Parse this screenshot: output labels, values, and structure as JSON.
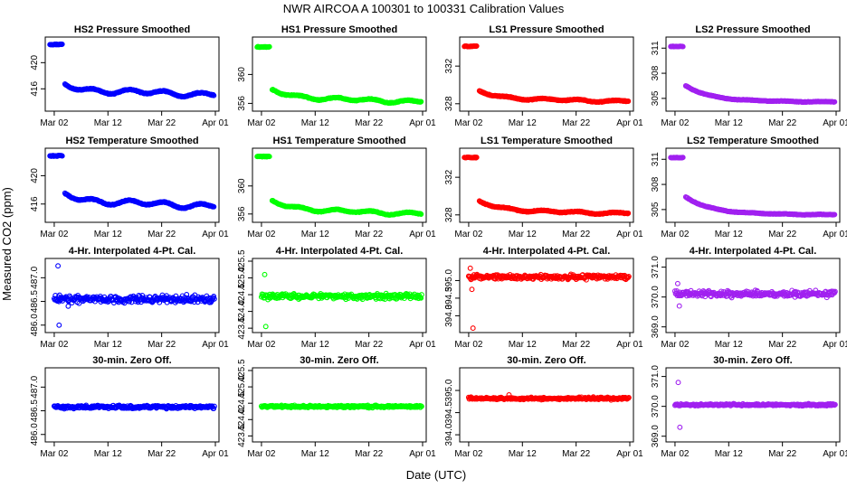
{
  "figure": {
    "title": "NWR   AIRCOA A   100301 to 100331   Calibration Values",
    "xlabel": "Date (UTC)",
    "ylabel": "Measured CO2 (ppm)"
  },
  "chart_data": [
    {
      "type": "scatter",
      "title": "HS2 Pressure Smoothed",
      "color": "#0000ff",
      "marker": "circle",
      "x_ticks": [
        "Mar 02",
        "Mar 12",
        "Mar 22",
        "Apr 01"
      ],
      "x_tick_days": [
        1,
        11,
        21,
        31
      ],
      "xlim": [
        0,
        31
      ],
      "ylim": [
        413,
        423.5
      ],
      "y_ticks": [
        416,
        420
      ],
      "y_tick_labels": [
        "416",
        "420"
      ],
      "pattern": "smoothed",
      "start": [
        0.2,
        2.5,
        422.8
      ],
      "base": 416.5,
      "end": 415.2,
      "decay": 8,
      "wiggle": 0.5,
      "noise": 0.12
    },
    {
      "type": "scatter",
      "title": "HS1 Pressure Smoothed",
      "color": "#00ff00",
      "marker": "circle",
      "x_ticks": [
        "Mar 02",
        "Mar 12",
        "Mar 22",
        "Apr 01"
      ],
      "x_tick_days": [
        1,
        11,
        21,
        31
      ],
      "xlim": [
        0,
        31
      ],
      "ylim": [
        355.3,
        364.8
      ],
      "y_ticks": [
        356,
        360
      ],
      "y_tick_labels": [
        "356",
        "360"
      ],
      "pattern": "smoothed",
      "start": [
        0.2,
        2.5,
        363.8
      ],
      "base": 357.8,
      "end": 356.3,
      "decay": 7,
      "wiggle": 0.3,
      "noise": 0.1
    },
    {
      "type": "scatter",
      "title": "LS1 Pressure Smoothed",
      "color": "#ff0000",
      "marker": "circle",
      "x_ticks": [
        "Mar 02",
        "Mar 12",
        "Mar 22",
        "Apr 01"
      ],
      "x_tick_days": [
        1,
        11,
        21,
        31
      ],
      "xlim": [
        0,
        31
      ],
      "ylim": [
        327.5,
        334.8
      ],
      "y_ticks": [
        328,
        332
      ],
      "y_tick_labels": [
        "328",
        "332"
      ],
      "pattern": "smoothed",
      "start": [
        0.2,
        2.5,
        334.1
      ],
      "base": 329.3,
      "end": 328.3,
      "decay": 6,
      "wiggle": 0.15,
      "noise": 0.08
    },
    {
      "type": "scatter",
      "title": "LS2 Pressure Smoothed",
      "color": "#a020f0",
      "marker": "circle",
      "x_ticks": [
        "Mar 02",
        "Mar 12",
        "Mar 22",
        "Apr 01"
      ],
      "x_tick_days": [
        1,
        11,
        21,
        31
      ],
      "xlim": [
        0,
        31
      ],
      "ylim": [
        303.8,
        312
      ],
      "y_ticks": [
        305,
        308,
        311
      ],
      "y_tick_labels": [
        "305",
        "308",
        "311"
      ],
      "pattern": "smoothed",
      "start": [
        0.2,
        2.5,
        311.2
      ],
      "base": 306.5,
      "end": 304.6,
      "decay": 5,
      "wiggle": 0.05,
      "noise": 0.06
    },
    {
      "type": "scatter",
      "title": "HS2 Temperature Smoothed",
      "color": "#0000ff",
      "marker": "circle",
      "x_ticks": [
        "Mar 02",
        "Mar 12",
        "Mar 22",
        "Apr 01"
      ],
      "x_tick_days": [
        1,
        11,
        21,
        31
      ],
      "xlim": [
        0,
        31
      ],
      "ylim": [
        413.8,
        423.5
      ],
      "y_ticks": [
        416,
        420
      ],
      "y_tick_labels": [
        "416",
        "420"
      ],
      "pattern": "smoothed",
      "start": [
        0.2,
        2.5,
        422.8
      ],
      "base": 417.3,
      "end": 415.8,
      "decay": 8,
      "wiggle": 0.5,
      "noise": 0.12
    },
    {
      "type": "scatter",
      "title": "HS1 Temperature Smoothed",
      "color": "#00ff00",
      "marker": "circle",
      "x_ticks": [
        "Mar 02",
        "Mar 12",
        "Mar 22",
        "Apr 01"
      ],
      "x_tick_days": [
        1,
        11,
        21,
        31
      ],
      "xlim": [
        0,
        31
      ],
      "ylim": [
        355.2,
        365
      ],
      "y_ticks": [
        356,
        360
      ],
      "y_tick_labels": [
        "356",
        "360"
      ],
      "pattern": "smoothed",
      "start": [
        0.2,
        2.5,
        364.2
      ],
      "base": 357.8,
      "end": 356.1,
      "decay": 7,
      "wiggle": 0.3,
      "noise": 0.1
    },
    {
      "type": "scatter",
      "title": "LS1 Temperature Smoothed",
      "color": "#ff0000",
      "marker": "circle",
      "x_ticks": [
        "Mar 02",
        "Mar 12",
        "Mar 22",
        "Apr 01"
      ],
      "x_tick_days": [
        1,
        11,
        21,
        31
      ],
      "xlim": [
        0,
        31
      ],
      "ylim": [
        327.5,
        334.8
      ],
      "y_ticks": [
        328,
        332
      ],
      "y_tick_labels": [
        "328",
        "332"
      ],
      "pattern": "smoothed",
      "start": [
        0.2,
        2.5,
        334.1
      ],
      "base": 329.4,
      "end": 328.2,
      "decay": 6,
      "wiggle": 0.15,
      "noise": 0.08
    },
    {
      "type": "scatter",
      "title": "LS2 Temperature Smoothed",
      "color": "#a020f0",
      "marker": "circle",
      "x_ticks": [
        "Mar 02",
        "Mar 12",
        "Mar 22",
        "Apr 01"
      ],
      "x_tick_days": [
        1,
        11,
        21,
        31
      ],
      "xlim": [
        0,
        31
      ],
      "ylim": [
        303.8,
        312
      ],
      "y_ticks": [
        305,
        308,
        311
      ],
      "y_tick_labels": [
        "305",
        "308",
        "311"
      ],
      "pattern": "smoothed",
      "start": [
        0.2,
        2.5,
        311.2
      ],
      "base": 306.5,
      "end": 304.4,
      "decay": 5,
      "wiggle": 0.05,
      "noise": 0.06
    },
    {
      "type": "scatter",
      "title": "4-Hr. Interpolated 4-Pt. Cal.",
      "color": "#0000ff",
      "marker": "circle",
      "x_ticks": [
        "Mar 02",
        "Mar 12",
        "Mar 22",
        "Apr 01"
      ],
      "x_tick_days": [
        1,
        11,
        21,
        31
      ],
      "xlim": [
        0,
        31
      ],
      "ylim": [
        485.9,
        487.35
      ],
      "y_ticks": [
        486.0,
        486.5,
        487.0
      ],
      "y_tick_labels": [
        "486.0",
        "486.5",
        "487.0"
      ],
      "pattern": "flat",
      "level": 486.55,
      "noise": 0.07,
      "outliers": [
        [
          1.7,
          487.25
        ],
        [
          1.9,
          486.0
        ],
        [
          3.6,
          486.4
        ]
      ]
    },
    {
      "type": "scatter",
      "title": "4-Hr. Interpolated 4-Pt. Cal.",
      "color": "#00ff00",
      "marker": "circle",
      "x_ticks": [
        "Mar 02",
        "Mar 12",
        "Mar 22",
        "Apr 01"
      ],
      "x_tick_days": [
        1,
        11,
        21,
        31
      ],
      "xlim": [
        0,
        31
      ],
      "ylim": [
        423.45,
        425.5
      ],
      "y_ticks": [
        423.5,
        424.0,
        424.5,
        425.0,
        425.5
      ],
      "y_tick_labels": [
        "423.5",
        "424.0",
        "424.5",
        "425.0",
        "425.5"
      ],
      "pattern": "flat",
      "level": 424.45,
      "noise": 0.07,
      "outliers": [
        [
          1.6,
          425.1
        ],
        [
          1.8,
          423.55
        ]
      ]
    },
    {
      "type": "scatter",
      "title": "4-Hr. Interpolated 4-Pt. Cal.",
      "color": "#ff0000",
      "marker": "circle",
      "x_ticks": [
        "Mar 02",
        "Mar 12",
        "Mar 22",
        "Apr 01"
      ],
      "x_tick_days": [
        1,
        11,
        21,
        31
      ],
      "xlim": [
        0,
        31
      ],
      "ylim": [
        393.6,
        395.55
      ],
      "y_ticks": [
        394.0,
        394.5,
        395.0
      ],
      "y_tick_labels": [
        "394.0",
        "394.5",
        "395.0"
      ],
      "pattern": "flat",
      "level": 395.1,
      "noise": 0.06,
      "outliers": [
        [
          1.3,
          395.35
        ],
        [
          1.6,
          394.75
        ],
        [
          1.8,
          393.65
        ]
      ]
    },
    {
      "type": "scatter",
      "title": "4-Hr. Interpolated 4-Pt. Cal.",
      "color": "#a020f0",
      "marker": "circle",
      "x_ticks": [
        "Mar 02",
        "Mar 12",
        "Mar 22",
        "Apr 01"
      ],
      "x_tick_days": [
        1,
        11,
        21,
        31
      ],
      "xlim": [
        0,
        31
      ],
      "ylim": [
        368.9,
        371.2
      ],
      "y_ticks": [
        369.0,
        370.0,
        371.0
      ],
      "y_tick_labels": [
        "369.0",
        "370.0",
        "371.0"
      ],
      "pattern": "flat",
      "level": 370.1,
      "noise": 0.09,
      "outliers": [
        [
          1.5,
          370.45
        ],
        [
          1.8,
          369.7
        ]
      ]
    },
    {
      "type": "scatter",
      "title": "30-min. Zero Off.",
      "color": "#0000ff",
      "marker": "circle",
      "x_ticks": [
        "Mar 02",
        "Mar 12",
        "Mar 22",
        "Apr 01"
      ],
      "x_tick_days": [
        1,
        11,
        21,
        31
      ],
      "xlim": [
        0,
        31
      ],
      "ylim": [
        485.9,
        487.35
      ],
      "y_ticks": [
        486.0,
        486.5,
        487.0
      ],
      "y_tick_labels": [
        "486.0",
        "486.5",
        "487.0"
      ],
      "pattern": "flat",
      "level": 486.58,
      "noise": 0.03,
      "outliers": []
    },
    {
      "type": "scatter",
      "title": "30-min. Zero Off.",
      "color": "#00ff00",
      "marker": "circle",
      "x_ticks": [
        "Mar 02",
        "Mar 12",
        "Mar 22",
        "Apr 01"
      ],
      "x_tick_days": [
        1,
        11,
        21,
        31
      ],
      "xlim": [
        0,
        31
      ],
      "ylim": [
        423.4,
        425.5
      ],
      "y_ticks": [
        423.5,
        424.0,
        424.5,
        425.0,
        425.5
      ],
      "y_tick_labels": [
        "423.5",
        "424.0",
        "424.5",
        "425.0",
        "425.5"
      ],
      "pattern": "flat",
      "level": 424.4,
      "noise": 0.03,
      "outliers": []
    },
    {
      "type": "scatter",
      "title": "30-min. Zero Off.",
      "color": "#ff0000",
      "marker": "circle",
      "x_ticks": [
        "Mar 02",
        "Mar 12",
        "Mar 22",
        "Apr 01"
      ],
      "x_tick_days": [
        1,
        11,
        21,
        31
      ],
      "xlim": [
        0,
        31
      ],
      "ylim": [
        393.9,
        395.45
      ],
      "y_ticks": [
        394.0,
        394.5,
        395.0
      ],
      "y_tick_labels": [
        "394.0",
        "394.5",
        "395.0"
      ],
      "pattern": "flat",
      "level": 394.82,
      "noise": 0.025,
      "outliers": [
        [
          8.5,
          394.9
        ]
      ]
    },
    {
      "type": "scatter",
      "title": "30-min. Zero Off.",
      "color": "#a020f0",
      "marker": "circle",
      "x_ticks": [
        "Mar 02",
        "Mar 12",
        "Mar 22",
        "Apr 01"
      ],
      "x_tick_days": [
        1,
        11,
        21,
        31
      ],
      "xlim": [
        0,
        31
      ],
      "ylim": [
        368.9,
        371.2
      ],
      "y_ticks": [
        369.0,
        370.0,
        371.0
      ],
      "y_tick_labels": [
        "369.0",
        "370.0",
        "371.0"
      ],
      "pattern": "flat",
      "level": 370.05,
      "noise": 0.03,
      "outliers": [
        [
          1.6,
          370.8
        ],
        [
          1.9,
          369.3
        ]
      ]
    }
  ]
}
